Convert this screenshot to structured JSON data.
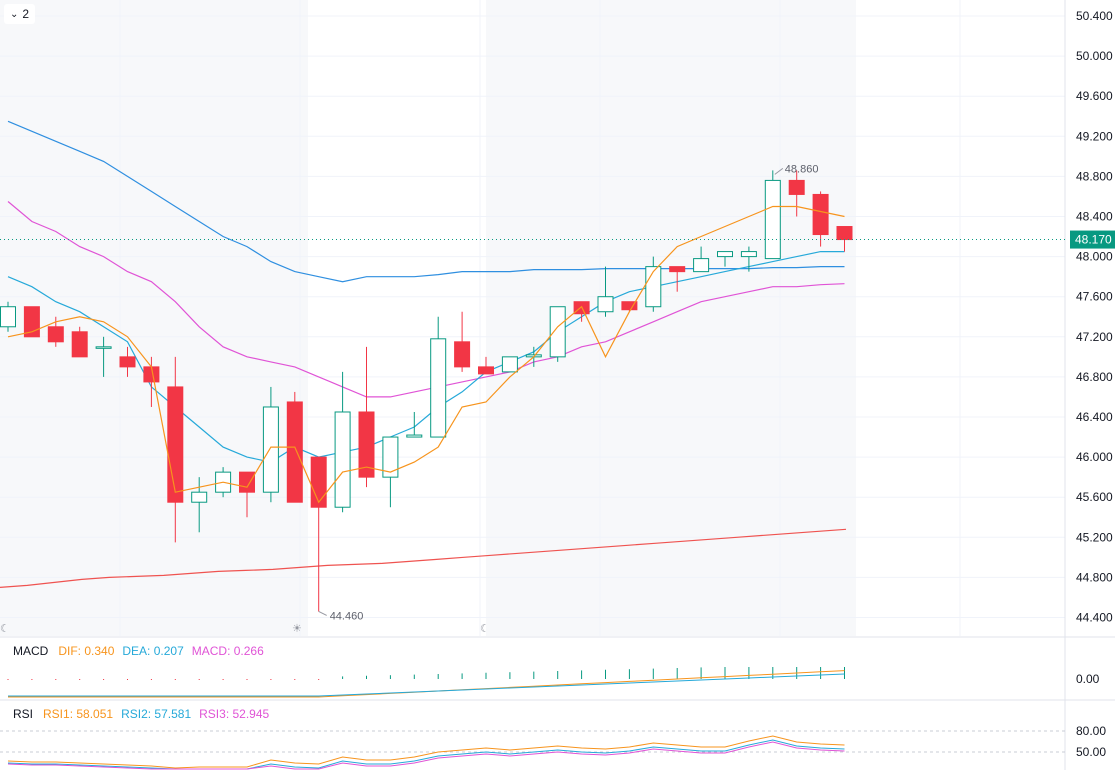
{
  "toggle": {
    "count": "2"
  },
  "price_axis": {
    "ticks": [
      "50.400",
      "50.000",
      "49.600",
      "49.200",
      "48.800",
      "48.400",
      "48.000",
      "47.600",
      "47.200",
      "46.800",
      "46.400",
      "46.000",
      "45.600",
      "45.200",
      "44.800",
      "44.400"
    ],
    "last_price": "48.170",
    "last_price_color": "#089981"
  },
  "annotations": {
    "high_label": "48.860",
    "low_label": "44.460"
  },
  "colors": {
    "up": "#089981",
    "down": "#f23645",
    "ma_fast": "#f7941d",
    "ma_2": "#26a9d9",
    "ma_3": "#e054d6",
    "ma_4": "#2f8fe0",
    "ma_5": "#ef5350",
    "session_shade": "#f7f8fa",
    "grid": "#f0f3fa"
  },
  "macd": {
    "title": "MACD",
    "dif_label": "DIF: 0.340",
    "dea_label": "DEA: 0.207",
    "macd_label": "MACD: 0.266",
    "axis_tick": "0.00"
  },
  "rsi": {
    "title": "RSI",
    "rsi1_label": "RSI1: 58.051",
    "rsi2_label": "RSI2: 57.581",
    "rsi3_label": "RSI3: 52.945",
    "axis_ticks": [
      "80.00",
      "50.00"
    ]
  },
  "chart_data": {
    "type": "candlestick",
    "y_range": [
      44.25,
      50.55
    ],
    "candles": [
      {
        "o": 47.3,
        "h": 47.55,
        "l": 47.25,
        "c": 47.5
      },
      {
        "o": 47.5,
        "h": 47.5,
        "l": 47.2,
        "c": 47.2
      },
      {
        "o": 47.3,
        "h": 47.4,
        "l": 47.1,
        "c": 47.15
      },
      {
        "o": 47.25,
        "h": 47.3,
        "l": 47.0,
        "c": 47.0
      },
      {
        "o": 47.1,
        "h": 47.2,
        "l": 46.8,
        "c": 47.1
      },
      {
        "o": 47.0,
        "h": 47.1,
        "l": 46.8,
        "c": 46.9
      },
      {
        "o": 46.9,
        "h": 47.0,
        "l": 46.5,
        "c": 46.75
      },
      {
        "o": 46.7,
        "h": 47.0,
        "l": 45.15,
        "c": 45.55
      },
      {
        "o": 45.55,
        "h": 45.8,
        "l": 45.25,
        "c": 45.65
      },
      {
        "o": 45.65,
        "h": 45.9,
        "l": 45.6,
        "c": 45.85
      },
      {
        "o": 45.85,
        "h": 45.85,
        "l": 45.4,
        "c": 45.65
      },
      {
        "o": 45.65,
        "h": 46.7,
        "l": 45.55,
        "c": 46.5
      },
      {
        "o": 46.55,
        "h": 46.65,
        "l": 45.55,
        "c": 45.55
      },
      {
        "o": 46.0,
        "h": 46.0,
        "l": 44.46,
        "c": 45.5
      },
      {
        "o": 45.5,
        "h": 46.85,
        "l": 45.45,
        "c": 46.45
      },
      {
        "o": 46.45,
        "h": 47.1,
        "l": 45.7,
        "c": 45.8
      },
      {
        "o": 45.8,
        "h": 46.2,
        "l": 45.5,
        "c": 46.2
      },
      {
        "o": 46.2,
        "h": 46.45,
        "l": 46.2,
        "c": 46.22
      },
      {
        "o": 46.2,
        "h": 47.4,
        "l": 46.2,
        "c": 47.18
      },
      {
        "o": 47.15,
        "h": 47.45,
        "l": 46.85,
        "c": 46.9
      },
      {
        "o": 46.9,
        "h": 47.0,
        "l": 46.85,
        "c": 46.83
      },
      {
        "o": 46.85,
        "h": 47.0,
        "l": 46.85,
        "c": 47.0
      },
      {
        "o": 47.0,
        "h": 47.1,
        "l": 46.9,
        "c": 47.02
      },
      {
        "o": 47.0,
        "h": 47.5,
        "l": 46.95,
        "c": 47.5
      },
      {
        "o": 47.55,
        "h": 47.55,
        "l": 47.35,
        "c": 47.43
      },
      {
        "o": 47.45,
        "h": 47.9,
        "l": 47.4,
        "c": 47.6
      },
      {
        "o": 47.55,
        "h": 47.55,
        "l": 47.45,
        "c": 47.47
      },
      {
        "o": 47.5,
        "h": 48.0,
        "l": 47.45,
        "c": 47.9
      },
      {
        "o": 47.9,
        "h": 47.9,
        "l": 47.65,
        "c": 47.85
      },
      {
        "o": 47.85,
        "h": 48.1,
        "l": 47.85,
        "c": 47.98
      },
      {
        "o": 48.0,
        "h": 48.05,
        "l": 47.9,
        "c": 48.05
      },
      {
        "o": 48.0,
        "h": 48.1,
        "l": 47.85,
        "c": 48.05
      },
      {
        "o": 47.98,
        "h": 48.86,
        "l": 47.98,
        "c": 48.76
      },
      {
        "o": 48.76,
        "h": 48.86,
        "l": 48.4,
        "c": 48.62
      },
      {
        "o": 48.62,
        "h": 48.65,
        "l": 48.1,
        "c": 48.22
      },
      {
        "o": 48.3,
        "h": 48.3,
        "l": 48.05,
        "c": 48.17
      }
    ],
    "ma_fast": [
      47.2,
      47.25,
      47.35,
      47.4,
      47.35,
      47.2,
      46.9,
      45.65,
      45.7,
      45.75,
      45.7,
      46.1,
      46.1,
      45.55,
      45.85,
      45.9,
      45.85,
      45.95,
      46.1,
      46.5,
      46.55,
      46.8,
      47.0,
      47.3,
      47.5,
      47.0,
      47.45,
      47.85,
      48.1,
      48.2,
      48.3,
      48.4,
      48.5,
      48.5,
      48.45,
      48.4
    ],
    "ma_2": [
      47.8,
      47.7,
      47.55,
      47.45,
      47.3,
      47.15,
      46.7,
      46.5,
      46.3,
      46.1,
      46.0,
      45.95,
      46.1,
      46.0,
      46.05,
      46.1,
      46.2,
      46.3,
      46.5,
      46.65,
      46.85,
      46.95,
      47.05,
      47.25,
      47.4,
      47.55,
      47.65,
      47.7,
      47.75,
      47.8,
      47.85,
      47.9,
      47.95,
      48.0,
      48.05,
      48.05
    ],
    "ma_3": [
      48.55,
      48.35,
      48.25,
      48.1,
      48.0,
      47.85,
      47.75,
      47.55,
      47.3,
      47.1,
      47.0,
      46.95,
      46.9,
      46.8,
      46.7,
      46.6,
      46.6,
      46.65,
      46.7,
      46.75,
      46.8,
      46.85,
      46.95,
      47.0,
      47.1,
      47.15,
      47.25,
      47.35,
      47.45,
      47.55,
      47.6,
      47.65,
      47.7,
      47.7,
      47.72,
      47.73
    ],
    "ma_4": [
      49.35,
      49.25,
      49.15,
      49.05,
      48.95,
      48.8,
      48.65,
      48.5,
      48.35,
      48.2,
      48.1,
      47.95,
      47.85,
      47.8,
      47.75,
      47.8,
      47.8,
      47.8,
      47.82,
      47.85,
      47.85,
      47.85,
      47.87,
      47.87,
      47.87,
      47.88,
      47.88,
      47.88,
      47.88,
      47.88,
      47.88,
      47.88,
      47.89,
      47.89,
      47.9,
      47.9
    ],
    "ma_5": [
      44.7,
      44.72,
      44.75,
      44.78,
      44.8,
      44.81,
      44.82,
      44.84,
      44.86,
      44.87,
      44.88,
      44.9,
      44.92,
      44.93,
      44.94,
      44.96,
      44.98,
      45.0,
      45.02,
      45.04,
      45.06,
      45.08,
      45.1,
      45.12,
      45.14,
      45.16,
      45.18,
      45.2,
      45.22,
      45.24,
      45.26,
      45.28
    ]
  }
}
